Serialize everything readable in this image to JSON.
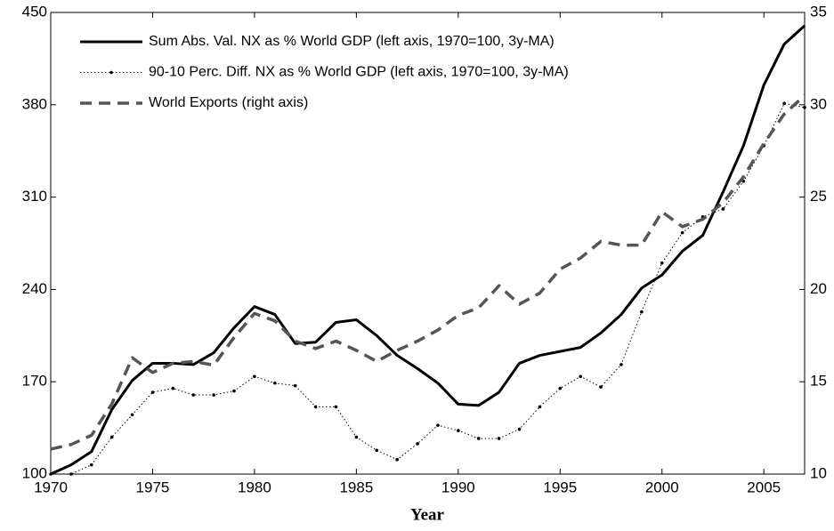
{
  "chart_data": {
    "type": "line",
    "x_label": "Year",
    "x": [
      1970,
      1971,
      1972,
      1973,
      1974,
      1975,
      1976,
      1977,
      1978,
      1979,
      1980,
      1981,
      1982,
      1983,
      1984,
      1985,
      1986,
      1987,
      1988,
      1989,
      1990,
      1991,
      1992,
      1993,
      1994,
      1995,
      1996,
      1997,
      1998,
      1999,
      2000,
      2001,
      2002,
      2003,
      2004,
      2005,
      2006,
      2007
    ],
    "xlim": [
      1970,
      2007
    ],
    "xticks": [
      1970,
      1975,
      1980,
      1985,
      1990,
      1995,
      2000,
      2005
    ],
    "ylim": [
      100,
      450
    ],
    "yticks": [
      100,
      170,
      240,
      310,
      380,
      450
    ],
    "y2lim": [
      10,
      35
    ],
    "y2ticks": [
      10,
      15,
      20,
      25,
      30,
      35
    ],
    "grid": false,
    "legend": "upper left",
    "series": [
      {
        "name": "Sum Abs. Val. NX as %  World GDP (left axis, 1970=100, 3y-MA)",
        "color": "#000000",
        "style": "solid",
        "values": [
          100,
          107,
          117,
          149,
          171,
          184,
          184,
          183,
          192,
          211,
          227,
          221,
          199,
          200,
          215,
          217,
          205,
          190,
          180,
          169,
          153,
          152,
          162,
          184,
          190,
          193,
          196,
          207,
          221,
          241,
          251,
          269,
          281,
          314,
          349,
          395,
          426,
          440
        ]
      },
      {
        "name": "90-10 Perc. Diff. NX as %  World GDP (left axis, 1970=100, 3y-MA)",
        "color": "#000000",
        "style": "dotted",
        "values": [
          100,
          100,
          107,
          128,
          145,
          162,
          165,
          160,
          160,
          163,
          174,
          169,
          167,
          151,
          151,
          128,
          118,
          111,
          123,
          137,
          133,
          127,
          127,
          134,
          151,
          165,
          174,
          166,
          183,
          223,
          260,
          283,
          295,
          301,
          322,
          349,
          381,
          378
        ]
      },
      {
        "name": "World Exports (right axis)",
        "color": "#555555",
        "style": "dashed",
        "axis": "y2",
        "values": [
          11.35,
          11.6,
          12.1,
          13.8,
          16.3,
          15.5,
          16.0,
          16.1,
          15.9,
          17.4,
          18.7,
          18.3,
          17.2,
          16.8,
          17.2,
          16.7,
          16.1,
          16.7,
          17.2,
          17.8,
          18.6,
          19.0,
          20.2,
          19.2,
          19.8,
          21.1,
          21.7,
          22.6,
          22.4,
          22.4,
          24.2,
          23.4,
          23.8,
          24.7,
          26.1,
          27.9,
          29.5,
          30.5
        ]
      }
    ]
  }
}
